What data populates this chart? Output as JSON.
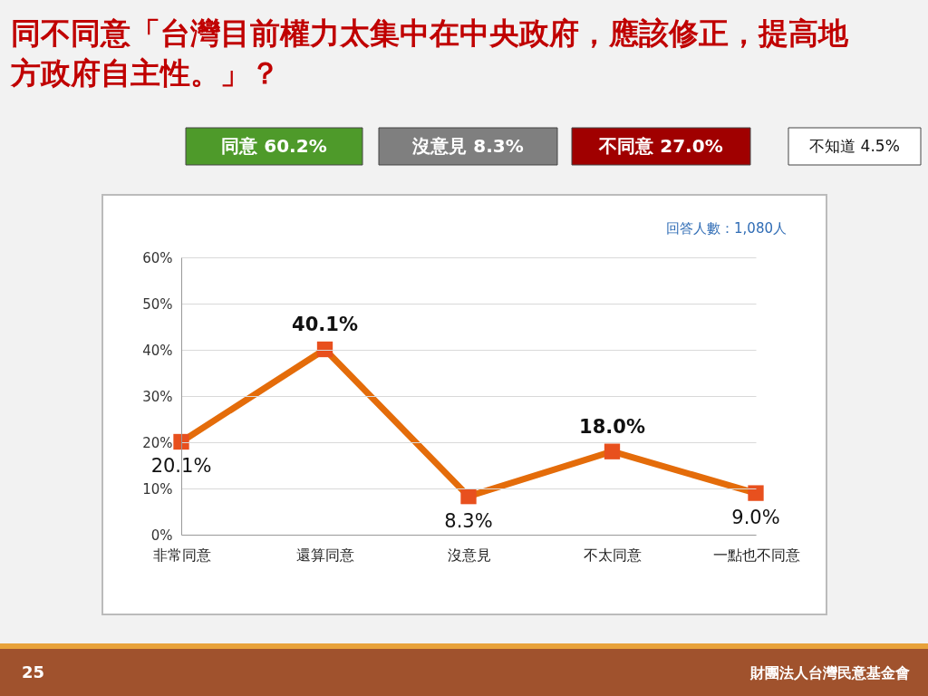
{
  "chart_data": {
    "type": "line",
    "title": "同不同意「台灣目前權力太集中在中央政府，應該修正，提高地方政府自主性。」？",
    "categories": [
      "非常同意",
      "還算同意",
      "沒意見",
      "不太同意",
      "一點也不同意"
    ],
    "series": [
      {
        "color": "#e46c0a",
        "values": [
          20.1,
          40.1,
          8.3,
          18.0,
          9.0
        ],
        "value_labels": [
          "20.1%",
          "40.1%",
          "8.3%",
          "18.0%",
          "9.0%"
        ]
      }
    ],
    "ylim": [
      0,
      60
    ],
    "yticks": [
      {
        "value": 0,
        "label": "0%"
      },
      {
        "value": 10,
        "label": "10%"
      },
      {
        "value": 20,
        "label": "20%"
      },
      {
        "value": 30,
        "label": "30%"
      },
      {
        "value": 40,
        "label": "40%"
      },
      {
        "value": 50,
        "label": "50%"
      },
      {
        "value": 60,
        "label": "60%"
      }
    ],
    "grid": "y",
    "marker": "square",
    "line_style": "solid",
    "annotations": [
      "同意 60.2%",
      "沒意見 8.3%",
      "不同意 27.0%",
      "不知道 4.5%",
      "回答人數：1,080人",
      "25",
      "財團法人台灣民意基金會"
    ]
  }
}
